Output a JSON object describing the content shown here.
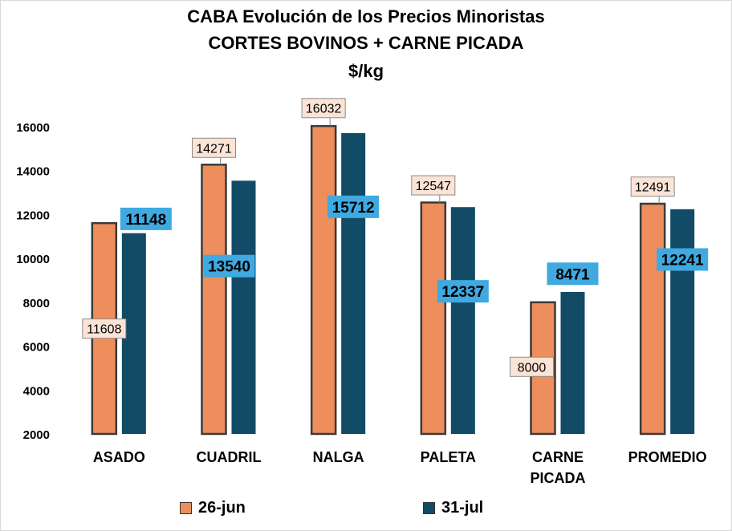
{
  "chart_data": {
    "type": "bar",
    "title": "CABA Evolución de los Precios Minoristas",
    "subtitle": "CORTES BOVINOS + CARNE PICADA",
    "unit_title": "$/kg",
    "categories": [
      "ASADO",
      "CUADRIL",
      "NALGA",
      "PALETA",
      "CARNE PICADA",
      "PROMEDIO"
    ],
    "series": [
      {
        "name": "26-jun",
        "values": [
          11608,
          14271,
          16032,
          12547,
          8000,
          12491
        ],
        "color": "#ED8E5C"
      },
      {
        "name": "31-jul",
        "values": [
          11148,
          13540,
          15712,
          12337,
          8471,
          12241
        ],
        "color": "#124B66"
      }
    ],
    "ylim": [
      2000,
      16000
    ],
    "yticks": [
      "2000",
      "4000",
      "6000",
      "8000",
      "10000",
      "12000",
      "14000",
      "16000"
    ],
    "grid": false,
    "legend": "bottom",
    "label_colors": {
      "series1_bg": "#FBE4D6",
      "series2_bg": "#3FA9E0"
    }
  }
}
